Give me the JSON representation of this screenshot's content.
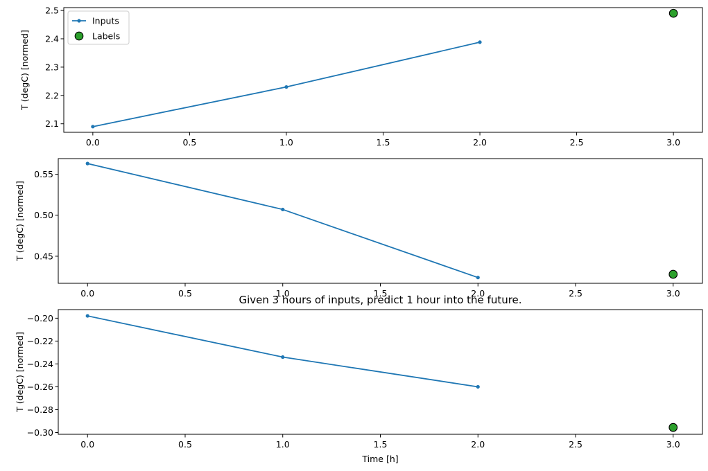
{
  "colors": {
    "inputs": "#1f77b4",
    "labels_fill": "#2ca02c",
    "labels_edge": "#000000",
    "frame": "#000000",
    "background": "#ffffff"
  },
  "legend": {
    "placement": "upper-left",
    "entries": [
      "Inputs",
      "Labels"
    ]
  },
  "chart_data": [
    {
      "type": "line",
      "title": "",
      "xlabel": "",
      "ylabel": "T (degC) [normed]",
      "xlim": [
        -0.15,
        3.15
      ],
      "ylim": [
        2.07,
        2.51
      ],
      "xticks": [
        0.0,
        0.5,
        1.0,
        1.5,
        2.0,
        2.5,
        3.0
      ],
      "xtick_labels": [
        "0.0",
        "0.5",
        "1.0",
        "1.5",
        "2.0",
        "2.5",
        "3.0"
      ],
      "yticks": [
        2.1,
        2.2,
        2.3,
        2.4,
        2.5
      ],
      "ytick_labels": [
        "2.1",
        "2.2",
        "2.3",
        "2.4",
        "2.5"
      ],
      "grid": false,
      "series": [
        {
          "name": "Inputs",
          "kind": "line",
          "x": [
            0,
            1,
            2
          ],
          "y": [
            2.09,
            2.23,
            2.388
          ]
        },
        {
          "name": "Labels",
          "kind": "scatter",
          "x": [
            3
          ],
          "y": [
            2.49
          ]
        }
      ]
    },
    {
      "type": "line",
      "title": "",
      "xlabel": "",
      "ylabel": "T (degC) [normed]",
      "xlim": [
        -0.15,
        3.15
      ],
      "ylim": [
        0.417,
        0.569
      ],
      "xticks": [
        0.0,
        0.5,
        1.0,
        1.5,
        2.0,
        2.5,
        3.0
      ],
      "xtick_labels": [
        "0.0",
        "0.5",
        "1.0",
        "1.5",
        "2.0",
        "2.5",
        "3.0"
      ],
      "yticks": [
        0.45,
        0.5,
        0.55
      ],
      "ytick_labels": [
        "0.45",
        "0.50",
        "0.55"
      ],
      "grid": false,
      "series": [
        {
          "name": "Inputs",
          "kind": "line",
          "x": [
            0,
            1,
            2
          ],
          "y": [
            0.563,
            0.507,
            0.424
          ]
        },
        {
          "name": "Labels",
          "kind": "scatter",
          "x": [
            3
          ],
          "y": [
            0.428
          ]
        }
      ]
    },
    {
      "type": "line",
      "title": "Given 3 hours of inputs, predict 1 hour into the future.",
      "xlabel": "Time [h]",
      "ylabel": "T (degC) [normed]",
      "xlim": [
        -0.15,
        3.15
      ],
      "ylim": [
        -0.3015,
        -0.1925
      ],
      "xticks": [
        0.0,
        0.5,
        1.0,
        1.5,
        2.0,
        2.5,
        3.0
      ],
      "xtick_labels": [
        "0.0",
        "0.5",
        "1.0",
        "1.5",
        "2.0",
        "2.5",
        "3.0"
      ],
      "yticks": [
        -0.3,
        -0.28,
        -0.26,
        -0.24,
        -0.22,
        -0.2
      ],
      "ytick_labels": [
        "−0.30",
        "−0.28",
        "−0.26",
        "−0.24",
        "−0.22",
        "−0.20"
      ],
      "grid": false,
      "series": [
        {
          "name": "Inputs",
          "kind": "line",
          "x": [
            0,
            1,
            2
          ],
          "y": [
            -0.198,
            -0.234,
            -0.26
          ]
        },
        {
          "name": "Labels",
          "kind": "scatter",
          "x": [
            3
          ],
          "y": [
            -0.2955
          ]
        }
      ]
    }
  ]
}
